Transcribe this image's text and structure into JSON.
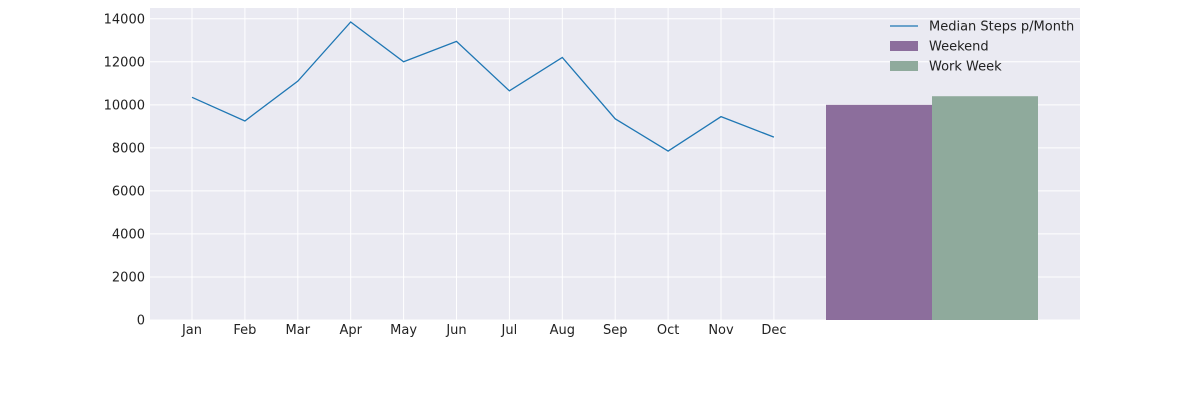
{
  "chart_data": {
    "type": "line",
    "title": "",
    "xlabel": "",
    "ylabel": "",
    "grid": true,
    "legend_position": "top-right",
    "ylim": [
      0,
      14500
    ],
    "y_ticks": [
      "0",
      "2000",
      "4000",
      "6000",
      "8000",
      "10000",
      "12000",
      "14000"
    ],
    "categories": [
      "Jan",
      "Feb",
      "Mar",
      "Apr",
      "May",
      "Jun",
      "Jul",
      "Aug",
      "Sep",
      "Oct",
      "Nov",
      "Dec"
    ],
    "series": [
      {
        "name": "Median Steps p/Month",
        "type": "line",
        "color": "#1f77b4",
        "values": [
          10350,
          9250,
          11100,
          13850,
          12000,
          12950,
          10650,
          12200,
          9350,
          7850,
          9450,
          8500
        ]
      }
    ],
    "bars": [
      {
        "name": "Weekend",
        "color": "#8c6e9c",
        "value": 10000
      },
      {
        "name": "Work Week",
        "color": "#8faa9c",
        "value": 10400
      }
    ],
    "legend": [
      {
        "label": "Median Steps p/Month",
        "kind": "line",
        "color": "#1f77b4"
      },
      {
        "label": "Weekend",
        "kind": "patch",
        "color": "#8c6e9c"
      },
      {
        "label": "Work Week",
        "kind": "patch",
        "color": "#8faa9c"
      }
    ]
  }
}
